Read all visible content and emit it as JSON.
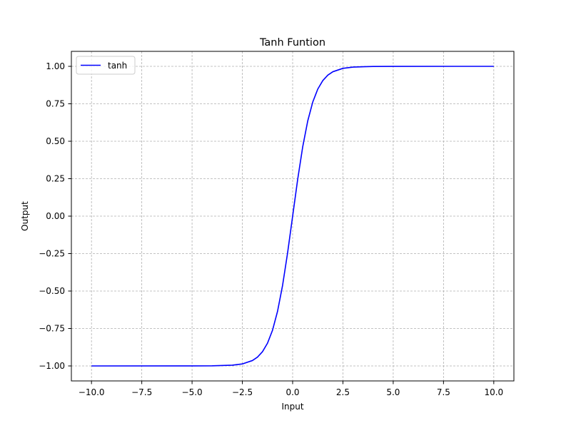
{
  "chart_data": {
    "type": "line",
    "title": "Tanh Funtion",
    "xlabel": "Input",
    "ylabel": "Output",
    "xlim": [
      -11.0,
      11.0
    ],
    "ylim": [
      -1.1,
      1.1
    ],
    "x_ticks": [
      -10.0,
      -7.5,
      -5.0,
      -2.5,
      0.0,
      2.5,
      5.0,
      7.5,
      10.0
    ],
    "x_tick_labels": [
      "−10.0",
      "−7.5",
      "−5.0",
      "−2.5",
      "0.0",
      "2.5",
      "5.0",
      "7.5",
      "10.0"
    ],
    "y_ticks": [
      -1.0,
      -0.75,
      -0.5,
      -0.25,
      0.0,
      0.25,
      0.5,
      0.75,
      1.0
    ],
    "y_tick_labels": [
      "−1.00",
      "−0.75",
      "−0.50",
      "−0.25",
      "0.00",
      "0.25",
      "0.50",
      "0.75",
      "1.00"
    ],
    "grid": true,
    "legend_position": "upper-left",
    "series": [
      {
        "name": "tanh",
        "color": "#0000ff",
        "x": [
          -10.0,
          -5.0,
          -4.0,
          -3.0,
          -2.5,
          -2.0,
          -1.75,
          -1.5,
          -1.25,
          -1.0,
          -0.75,
          -0.5,
          -0.25,
          0.0,
          0.25,
          0.5,
          0.75,
          1.0,
          1.25,
          1.5,
          1.75,
          2.0,
          2.5,
          3.0,
          4.0,
          5.0,
          10.0
        ],
        "y": [
          -1.0,
          -0.9999,
          -0.9993,
          -0.9951,
          -0.9866,
          -0.964,
          -0.9414,
          -0.9051,
          -0.8483,
          -0.7616,
          -0.6351,
          -0.4621,
          -0.2449,
          0.0,
          0.2449,
          0.4621,
          0.6351,
          0.7616,
          0.8483,
          0.9051,
          0.9414,
          0.964,
          0.9866,
          0.9951,
          0.9993,
          0.9999,
          1.0
        ]
      }
    ]
  }
}
